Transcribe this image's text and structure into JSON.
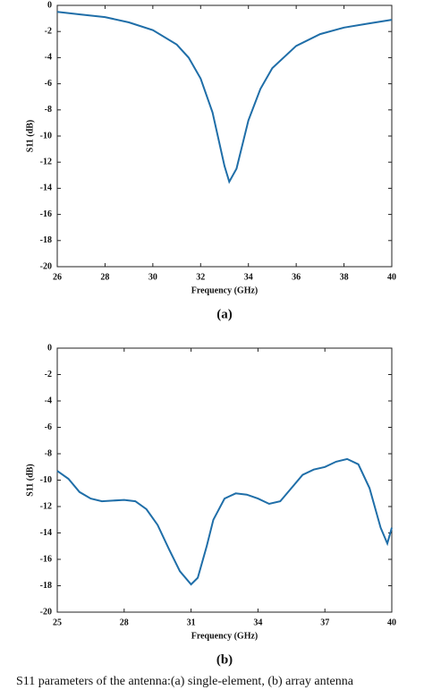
{
  "chart_data": [
    {
      "type": "line",
      "label": "(a)",
      "x_label": "Frequency (GHz)",
      "y_label": "S11 (dB)",
      "xlim": [
        26,
        40
      ],
      "xticks": [
        26,
        28,
        30,
        32,
        34,
        36,
        38,
        40
      ],
      "ylim": [
        -20,
        0
      ],
      "yticks": [
        0,
        -2,
        -4,
        -6,
        -8,
        -10,
        -12,
        -14,
        -16,
        -18,
        -20
      ],
      "series": [
        {
          "color": "#1f6ea8",
          "x": [
            26,
            27,
            28,
            29,
            30,
            31,
            31.5,
            32,
            32.5,
            33,
            33.2,
            33.5,
            34,
            34.5,
            35,
            36,
            37,
            38,
            39,
            40
          ],
          "values": [
            -0.5,
            -0.7,
            -0.9,
            -1.3,
            -1.9,
            -3.0,
            -4.0,
            -5.6,
            -8.2,
            -12.3,
            -13.5,
            -12.5,
            -8.8,
            -6.4,
            -4.8,
            -3.1,
            -2.2,
            -1.7,
            -1.4,
            -1.1
          ]
        }
      ]
    },
    {
      "type": "line",
      "label": "(b)",
      "x_label": "Frequency (GHz)",
      "y_label": "S11 (dB)",
      "xlim": [
        25,
        40
      ],
      "xticks": [
        25,
        28,
        31,
        34,
        37,
        40
      ],
      "ylim": [
        -20,
        0
      ],
      "yticks": [
        0,
        -2,
        -4,
        -6,
        -8,
        -10,
        -12,
        -14,
        -16,
        -18,
        -20
      ],
      "series": [
        {
          "color": "#1f6ea8",
          "x": [
            25,
            25.5,
            26,
            26.5,
            27,
            28,
            28.5,
            29,
            29.5,
            30,
            30.5,
            31,
            31.3,
            31.7,
            32,
            32.5,
            33,
            33.5,
            34,
            34.5,
            35,
            35.5,
            36,
            36.5,
            37,
            37.5,
            38,
            38.5,
            39,
            39.5,
            39.8,
            40
          ],
          "values": [
            -9.3,
            -9.9,
            -10.9,
            -11.4,
            -11.6,
            -11.5,
            -11.6,
            -12.2,
            -13.4,
            -15.2,
            -16.9,
            -17.9,
            -17.4,
            -15.0,
            -13.0,
            -11.4,
            -11.0,
            -11.1,
            -11.4,
            -11.8,
            -11.6,
            -10.6,
            -9.6,
            -9.2,
            -9.0,
            -8.6,
            -8.4,
            -8.8,
            -10.6,
            -13.6,
            -14.8,
            -13.6
          ]
        }
      ]
    }
  ],
  "caption": "S11 parameters of the antenna:(a) single-element, (b) array antenna"
}
